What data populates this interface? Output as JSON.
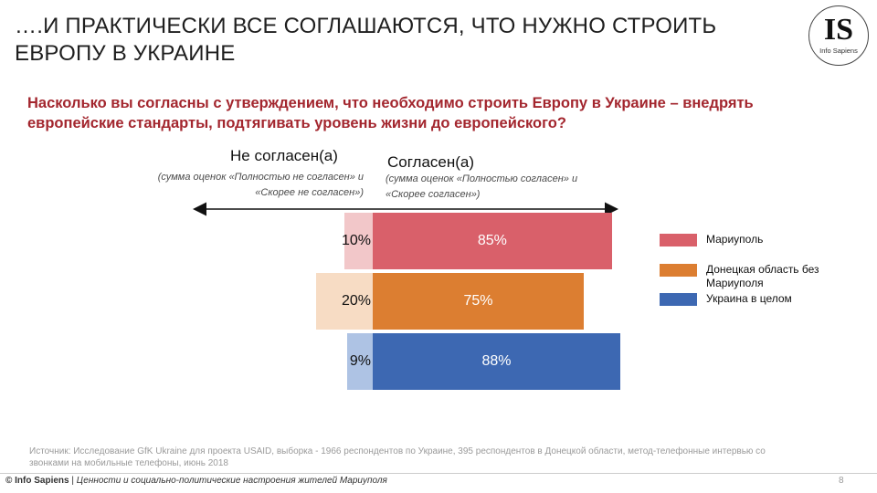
{
  "header": {
    "title": "….И ПРАКТИЧЕСКИ ВСЕ СОГЛАШАЮТСЯ, ЧТО НУЖНО СТРОИТЬ ЕВРОПУ В УКРАИНЕ",
    "logo_letters": "IS",
    "logo_sub": "Info Sapiens"
  },
  "question": "Насколько вы согласны с утверждением, что необходимо строить Европу в Украине – внедрять европейские стандарты, подтягивать уровень жизни до европейского?",
  "left_label": "Не согласен(а)",
  "left_note": "(сумма оценок «Полностью не согласен» и «Скорее не согласен»)",
  "right_label": "Согласен(а)",
  "right_note": "(сумма оценок «Полностью согласен» и «Скорее согласен»)",
  "chart_data": {
    "type": "bar",
    "orientation": "horizontal-diverging",
    "categories": [
      "Мариуполь",
      "Донецкая область без Мариуполя",
      "Украина в целом"
    ],
    "series": [
      {
        "name": "Не согласен(а)",
        "values": [
          10,
          20,
          9
        ],
        "labels": [
          "10%",
          "20%",
          "9%"
        ]
      },
      {
        "name": "Согласен(а)",
        "values": [
          85,
          75,
          88
        ],
        "labels": [
          "85%",
          "75%",
          "88%"
        ]
      }
    ],
    "colors": {
      "agree": [
        "#d9606a",
        "#dc7e31",
        "#3d68b2"
      ],
      "disagree": [
        "#f2c7c9",
        "#f7dcc4",
        "#aec3e4"
      ]
    },
    "legend": [
      {
        "label": "Мариуполь",
        "color": "#d9606a"
      },
      {
        "label": "Донецкая область без Мариуполя",
        "color": "#dc7e31"
      },
      {
        "label": "Украина в целом",
        "color": "#3d68b2"
      }
    ],
    "legend_position": "right",
    "grid": false
  },
  "source": "Источник: Исследование GfK Ukraine для проекта USAID, выборка - 1966 респондентов по Украине,  395 респондентов в Донецкой области, метод-телефонные интервью со звонками на мобильные телефоны, июнь 2018",
  "footer": {
    "brand": "© Info Sapiens",
    "separator": " | ",
    "report": "Ценности и социально-политические настроения жителей Мариуполя",
    "page": "8"
  }
}
